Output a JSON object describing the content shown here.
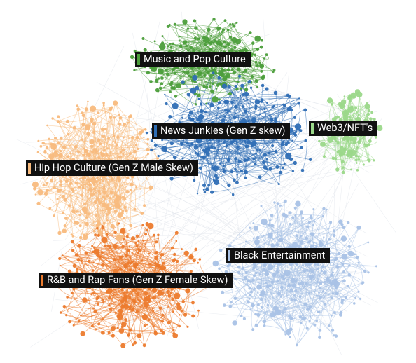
{
  "clusters": [
    {
      "label": "Music and Pop Culture",
      "color": "#4c9e3b"
    },
    {
      "label": "News Junkies (Gen Z skew)",
      "color": "#2f6eb5"
    },
    {
      "label": "Web3/NFT's",
      "color": "#9bd88a"
    },
    {
      "label": "Hip Hop Culture (Gen Z Male Skew)",
      "color": "#f8bb7e"
    },
    {
      "label": "Black Entertainment",
      "color": "#a9c2e6"
    },
    {
      "label": "R&B and Rap Fans (Gen Z Female Skew)",
      "color": "#ec7b2e"
    }
  ]
}
